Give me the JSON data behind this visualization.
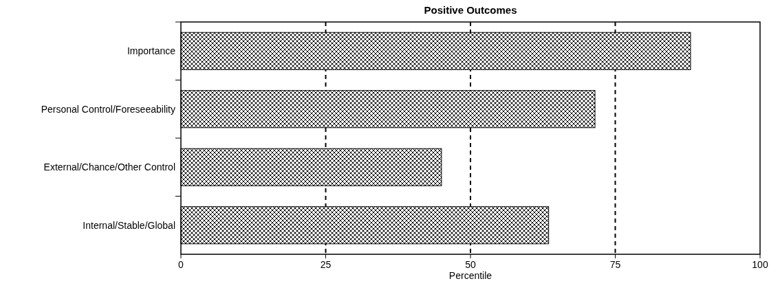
{
  "chart_data": {
    "type": "bar",
    "orientation": "horizontal",
    "title": "Positive Outcomes",
    "xlabel": "Percentile",
    "categories": [
      "Importance",
      "Personal Control/Foreseeability",
      "External/Chance/Other Control",
      "Internal/Stable/Global"
    ],
    "values": [
      88,
      71.5,
      45,
      63.5
    ],
    "color": "#000000",
    "xlim": [
      0,
      100
    ],
    "xticks": [
      0,
      25,
      50,
      75,
      100
    ],
    "grid": "x"
  }
}
